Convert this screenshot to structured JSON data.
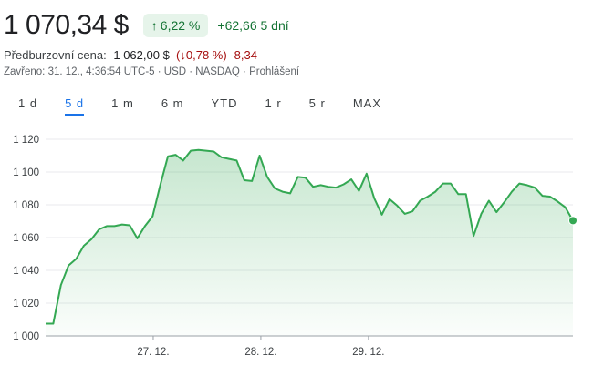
{
  "quote": {
    "price": "1 070,34 $",
    "change_pct": "6,22 %",
    "change_abs": "+62,66",
    "period": "5 dní"
  },
  "premarket": {
    "label": "Předburzovní cena:",
    "price": "1 062,00 $",
    "change_pct": "0,78 %",
    "change_abs": "-8,34"
  },
  "meta": {
    "text": "Zavřeno: 31. 12., 4:36:54 UTC-5 · USD · NASDAQ · ",
    "link": "Prohlášení"
  },
  "tabs": [
    {
      "label": "1 d",
      "active": false
    },
    {
      "label": "5 d",
      "active": true
    },
    {
      "label": "1 m",
      "active": false
    },
    {
      "label": "6 m",
      "active": false
    },
    {
      "label": "YTD",
      "active": false
    },
    {
      "label": "1 r",
      "active": false
    },
    {
      "label": "5 r",
      "active": false
    },
    {
      "label": "MAX",
      "active": false
    }
  ],
  "colors": {
    "line": "#34a853",
    "fill_top": "#34a853",
    "grid": "#e8eaed",
    "positive": "#137333",
    "negative": "#a50e0e",
    "accent": "#1a73e8"
  },
  "chart_data": {
    "type": "area",
    "ylim": [
      1000,
      1120
    ],
    "y_ticks": [
      1120,
      1100,
      1080,
      1060,
      1040,
      1020,
      1000
    ],
    "y_tick_labels": [
      "1 120",
      "1 100",
      "1 080",
      "1 060",
      "1 040",
      "1 020",
      "1 000"
    ],
    "x_ticks": [
      {
        "pos": 10,
        "label": "27. 12."
      },
      {
        "pos": 20,
        "label": "28. 12."
      },
      {
        "pos": 30,
        "label": "29. 12."
      }
    ],
    "x_range": [
      0,
      49
    ],
    "grid": true,
    "series": [
      {
        "values": [
          1007.5,
          1007.5,
          1031,
          1043,
          1047,
          1055,
          1059,
          1065,
          1067,
          1067,
          1068,
          1067.5,
          1059.5,
          1067,
          1073,
          1092,
          1109.5,
          1110.5,
          1107,
          1113,
          1113.5,
          1113,
          1112.5,
          1109,
          1108,
          1107,
          1095,
          1094.5,
          1110,
          1097,
          1090,
          1088,
          1087,
          1097,
          1096.5,
          1091,
          1092,
          1091,
          1090.5,
          1092.5,
          1095.5,
          1088.5,
          1099,
          1084,
          1074,
          1083.5,
          1079.5,
          1074.5,
          1076,
          1082.5,
          1085,
          1088,
          1093,
          1093,
          1086.5,
          1086.5,
          1061,
          1074.5,
          1082.5,
          1075.5,
          1081.5,
          1088,
          1093,
          1092,
          1090.5,
          1085.5,
          1085,
          1082,
          1078.5,
          1070.34
        ]
      }
    ],
    "last_value": 1070.34
  }
}
